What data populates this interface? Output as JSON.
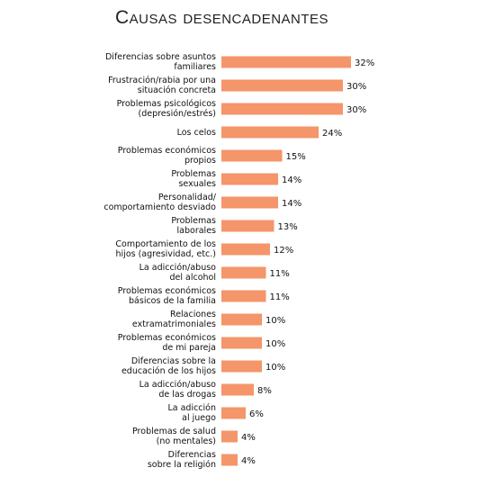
{
  "chart_data": {
    "type": "bar",
    "orientation": "horizontal",
    "title": "Causas desencadenantes",
    "categories": [
      "Diferencias sobre asuntos\nfamiliares",
      "Frustración/rabia por una\nsituación concreta",
      "Problemas psicológicos\n(depresión/estrés)",
      "Los celos",
      "Problemas económicos\npropios",
      "Problemas\nsexuales",
      "Personalidad/\ncomportamiento desviado",
      "Problemas\nlaborales",
      "Comportamiento de los\nhijos (agresividad, etc.)",
      "La adicción/abuso\ndel alcohol",
      "Problemas económicos\nbásicos de la familia",
      "Relaciones\nextramatrimoniales",
      "Problemas económicos\nde mi pareja",
      "Diferencias sobre la\neducación de los hijos",
      "La adicción/abuso\nde las drogas",
      "La adicción\nal juego",
      "Problemas de salud\n(no mentales)",
      "Diferencias\nsobre la religión"
    ],
    "values": [
      32,
      30,
      30,
      24,
      15,
      14,
      14,
      13,
      12,
      11,
      11,
      10,
      10,
      10,
      8,
      6,
      4,
      4
    ],
    "value_labels": [
      "32%",
      "30%",
      "30%",
      "24%",
      "15%",
      "14%",
      "14%",
      "13%",
      "12%",
      "11%",
      "11%",
      "10%",
      "10%",
      "10%",
      "8%",
      "6%",
      "4%",
      "4%"
    ],
    "color": "#f4956a"
  }
}
